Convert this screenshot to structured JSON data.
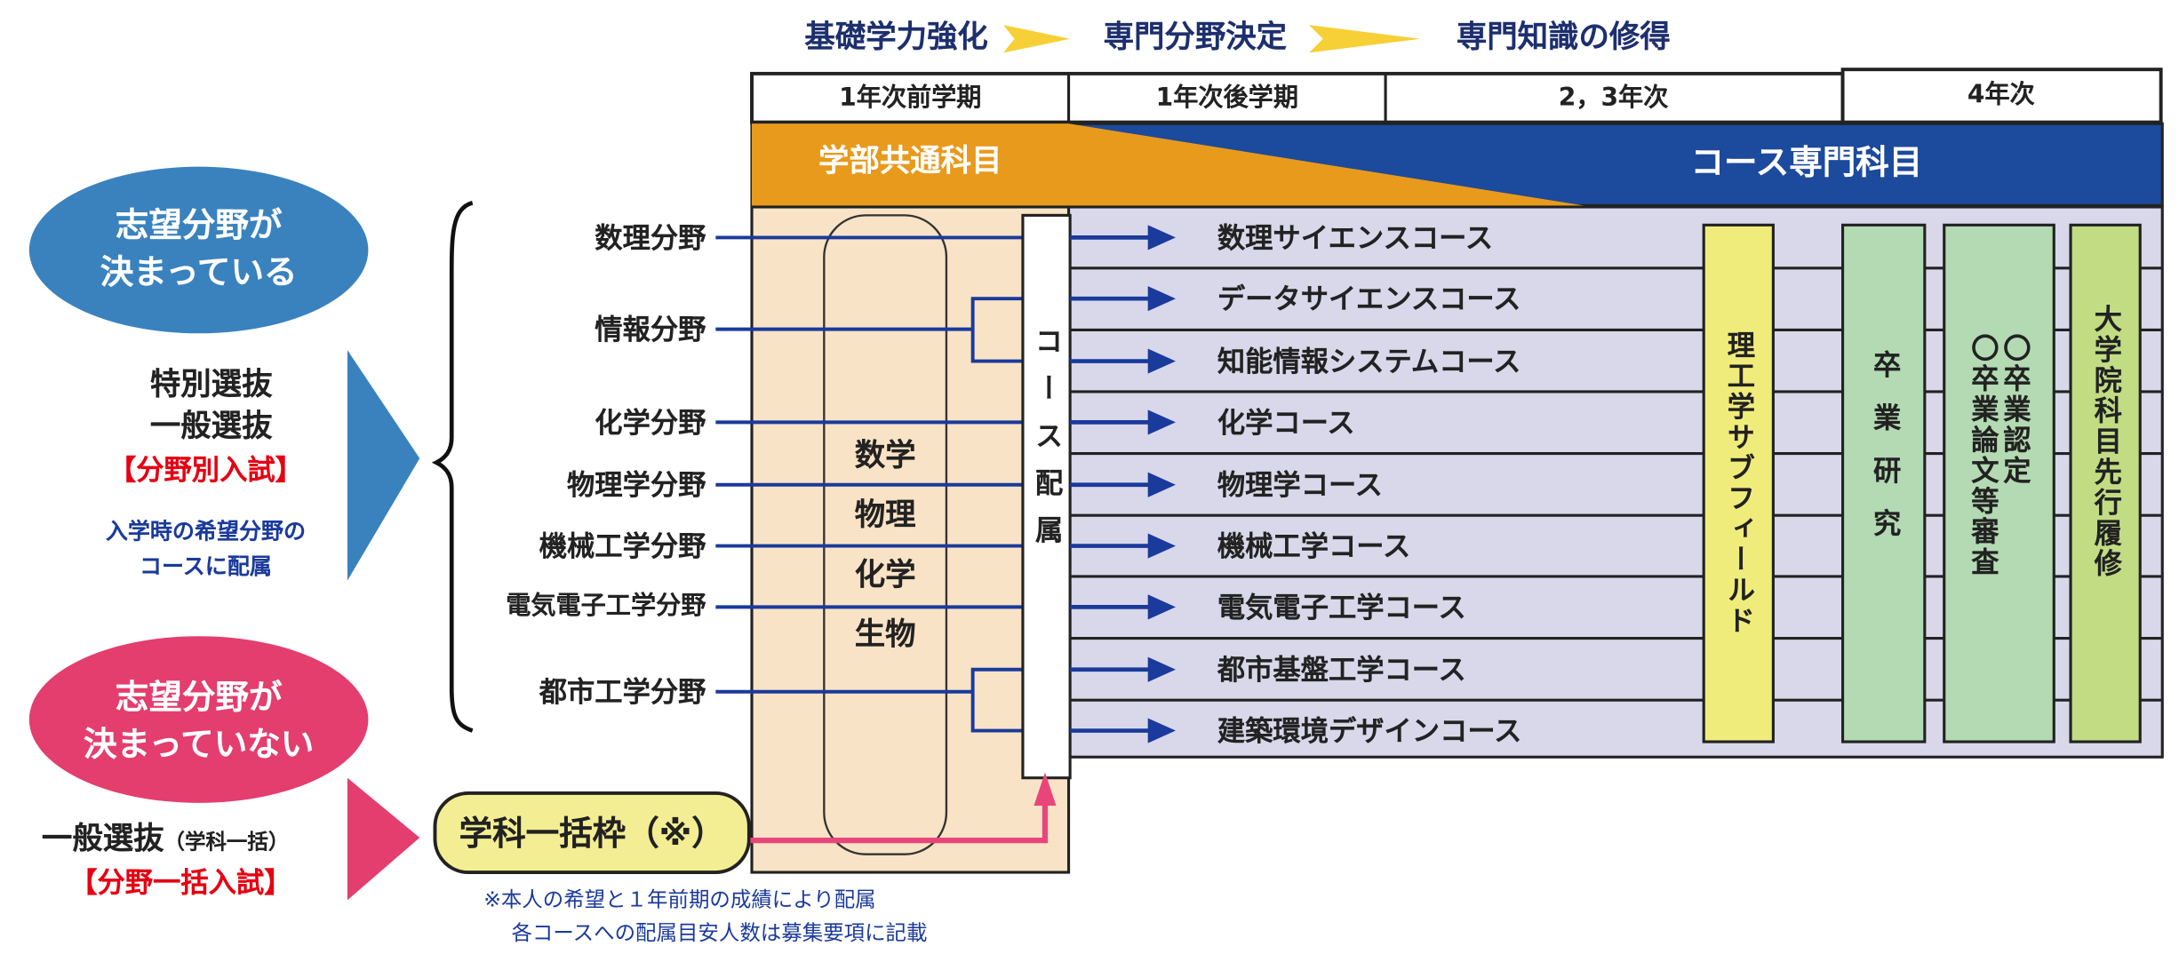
{
  "stages": [
    "基礎学力強化",
    "専門分野決定",
    "専門知識の修得"
  ],
  "periods": [
    "1年次前学期",
    "1年次後学期",
    "2，3年次",
    "4年次"
  ],
  "banner": {
    "common": "学部共通科目",
    "specialized": "コース専門科目"
  },
  "left": {
    "decided": "志望分野が\n決まっている",
    "decided_line1": "志望分野が",
    "decided_line2": "決まっている",
    "special_exam": "特別選抜",
    "general_exam": "一般選抜",
    "by_field": "【分野別入試】",
    "note1": "入学時の希望分野の",
    "note2": "コースに配属",
    "undecided_line1": "志望分野が",
    "undecided_line2": "決まっていない",
    "general_bulk": "一般選抜",
    "general_bulk_sub": "（学科一括）",
    "bulk_exam": "【分野一括入試】"
  },
  "fields": [
    "数理分野",
    "情報分野",
    "化学分野",
    "物理学分野",
    "機械工学分野",
    "電気電子工学分野",
    "都市工学分野"
  ],
  "basic_subjects": [
    "数学",
    "物理",
    "化学",
    "生物"
  ],
  "assignment": "コース配属",
  "bulk_box": "学科一括枠（※）",
  "courses": [
    "数理サイエンスコース",
    "データサイエンスコース",
    "知能情報システムコース",
    "化学コース",
    "物理学コース",
    "機械工学コース",
    "電気電子工学コース",
    "都市基盤工学コース",
    "建築環境デザインコース"
  ],
  "columns": {
    "subfield": "理工学サブフィールド",
    "research": "卒業研究",
    "certification": "〇卒業認定",
    "thesis_review": "〇卒業論文等審査",
    "graduate": "大学院科目先行履修"
  },
  "footnote": [
    "※本人の希望と１年前期の成績により配属",
    "各コースへの配属目安人数は募集要項に記載"
  ],
  "colors": {
    "orange": "#e89a1c",
    "blue": "#1c4a9c",
    "lavender": "#d9d8ea",
    "peach": "#f9e3c6",
    "yellow": "#f0ec7c",
    "green": "#b3dab3",
    "lime": "#c2dc84",
    "decided": "#3a82be",
    "undecided": "#e33e6e",
    "navy_line": "#1a3a9c",
    "pink_line": "#e8467a"
  }
}
